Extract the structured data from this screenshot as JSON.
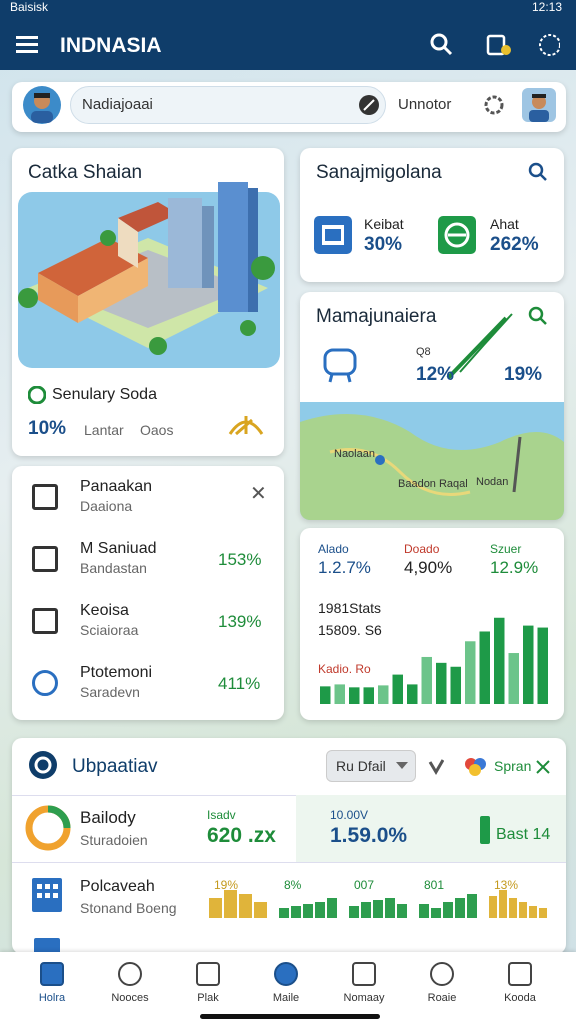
{
  "status_bar": {
    "left": "Baisisk",
    "time": "12:13"
  },
  "app_bar": {
    "title": "INDNASIA"
  },
  "search": {
    "placeholder": "Nadiajoaai",
    "filter": "Unnotor"
  },
  "city_card": {
    "title": "Catka Shaian",
    "subtitle": "Senulary Soda",
    "value": "10%",
    "label_1": "Lantar",
    "label_2": "Oaos"
  },
  "stats_card": {
    "title": "Sanajmigolana",
    "items": [
      {
        "label": "Keibat",
        "value": "30%"
      },
      {
        "label": "Ahat",
        "value": "262%"
      }
    ]
  },
  "map_card": {
    "title": "Mamajunaiera",
    "code": "Q8",
    "value_1": "12%",
    "value_2": "19%",
    "places": [
      "Naolaan",
      "Baadon Raqal",
      "Nodan"
    ]
  },
  "list_card": {
    "items": [
      {
        "title": "Panaakan",
        "subtitle": "Daaiona"
      },
      {
        "title": "M Saniuad",
        "subtitle": "Bandastan",
        "value": "153%"
      },
      {
        "title": "Keoisa",
        "subtitle": "Sciaioraa",
        "value": "139%"
      },
      {
        "title": "Ptotemoni",
        "subtitle": "Saradevn",
        "value": "411%"
      }
    ]
  },
  "chart_card": {
    "stats": [
      {
        "label": "Alado",
        "value": "1.2.7%"
      },
      {
        "label": "Doado",
        "value": "4,90%"
      },
      {
        "label": "Szuer",
        "value": "12.9%"
      }
    ],
    "label_1": "1981Stats",
    "label_2": "15809. S6",
    "label_3": "Kadio. Ro",
    "bars": [
      18,
      20,
      17,
      17,
      19,
      30,
      20,
      48,
      42,
      38,
      64,
      74,
      88,
      52,
      80,
      78
    ]
  },
  "updates": {
    "title": "Ubpaatiav",
    "dropdown": "Ru Dfail",
    "action": "Spran",
    "row_1": {
      "title": "Bailody",
      "subtitle": "Sturadoien",
      "cells": [
        {
          "label": "Isadv",
          "value": "620 .zx"
        },
        {
          "label": "10.00V",
          "value": "1.59.0%"
        }
      ],
      "badge": "Bast 14"
    },
    "row_2": {
      "title": "Polcaveah",
      "subtitle": "Stonand Boeng",
      "groups": [
        {
          "label": "19%",
          "color": "#e0b43a",
          "bars": [
            20,
            28,
            24,
            16
          ]
        },
        {
          "label": "8%",
          "color": "#2e9e4f",
          "bars": [
            10,
            12,
            14,
            16,
            20
          ]
        },
        {
          "label": "007",
          "color": "#2e9e4f",
          "bars": [
            12,
            16,
            18,
            20,
            14
          ]
        },
        {
          "label": "801",
          "color": "#2e9e4f",
          "bars": [
            14,
            10,
            16,
            20,
            24
          ]
        },
        {
          "label": "13%",
          "color": "#e0b43a",
          "bars": [
            22,
            28,
            20,
            16,
            12,
            10
          ]
        }
      ]
    }
  },
  "nav": [
    "Holra",
    "Nooces",
    "Plak",
    "Maile",
    "Nomaay",
    "Roaie",
    "Kooda"
  ]
}
